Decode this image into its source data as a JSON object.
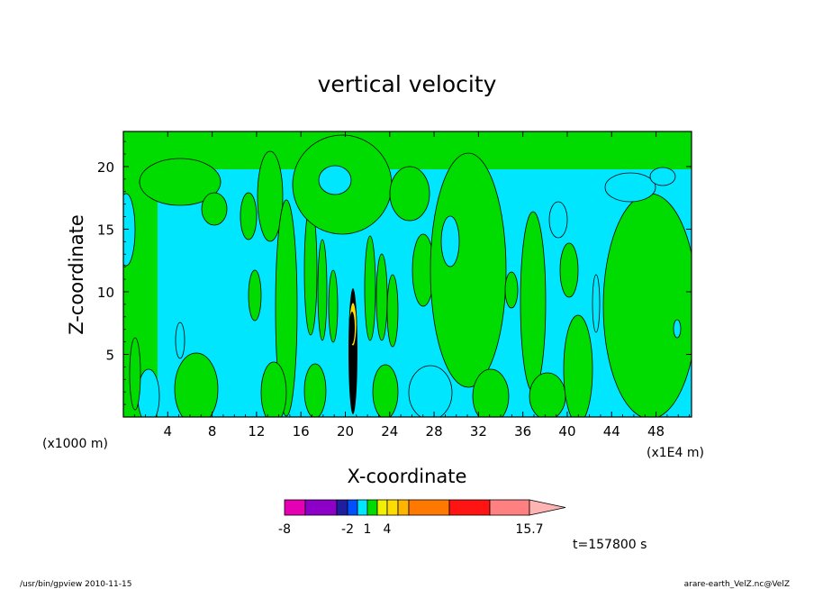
{
  "chart_data": {
    "type": "heatmap",
    "title": "vertical velocity",
    "xlabel": "X-coordinate",
    "ylabel": "Z-coordinate",
    "x_unit_left": "(x1000 m)",
    "x_unit_right": "(x1E4 m)",
    "xlim": [
      0,
      51.2
    ],
    "ylim": [
      0,
      22.8
    ],
    "x_ticks": [
      4,
      8,
      12,
      16,
      20,
      24,
      28,
      32,
      36,
      40,
      44,
      48
    ],
    "y_ticks": [
      5,
      10,
      15,
      20
    ],
    "x_tick_labels": [
      "4",
      "8",
      "12",
      "16",
      "20",
      "24",
      "28",
      "32",
      "36",
      "40",
      "44",
      "48"
    ],
    "y_tick_labels": [
      "5",
      "10",
      "15",
      "20"
    ],
    "colorbar": {
      "colors": [
        "#e600b4",
        "#8c00c8",
        "#1e1ea0",
        "#0050ff",
        "#00e6ff",
        "#00dc00",
        "#f0f000",
        "#ffdc00",
        "#ffb400",
        "#ff7800",
        "#ff1414",
        "#ff8080",
        "#ffb4b4"
      ],
      "labels": [
        "-8",
        "-2",
        "1",
        "4",
        "15.7"
      ],
      "label_positions": [
        0,
        3,
        5,
        7,
        12
      ]
    },
    "colors": {
      "negative": "#00e6ff",
      "positive": "#00dc00",
      "strong": "#000000"
    },
    "time_label": "t=157800 s"
  },
  "footer": {
    "left": "/usr/bin/gpview   2010-11-15",
    "right": "arare-earth_VelZ.nc@VelZ"
  }
}
